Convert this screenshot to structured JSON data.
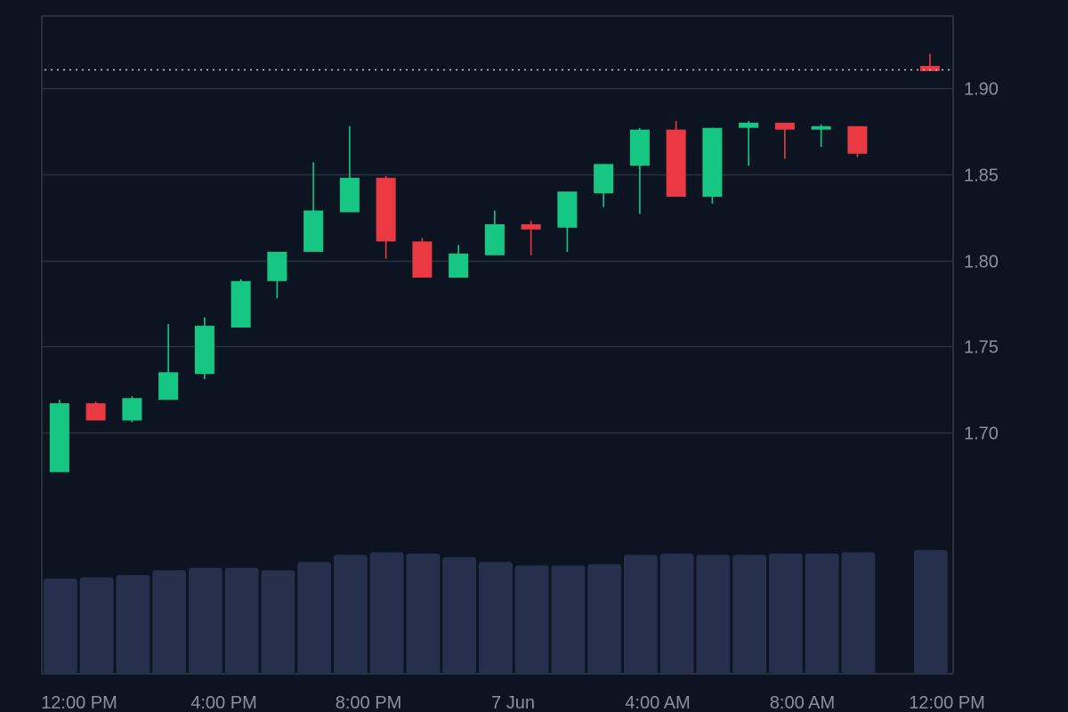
{
  "chart_data": {
    "type": "candlestick",
    "x_tick_labels": [
      "12:00 PM",
      "4:00 PM",
      "8:00 PM",
      "7 Jun",
      "4:00 AM",
      "8:00 AM",
      "12:00 PM"
    ],
    "y_tick_labels": [
      "1.70",
      "1.75",
      "1.80",
      "1.85",
      "1.90"
    ],
    "y_ticks": [
      1.7,
      1.75,
      1.8,
      1.85,
      1.9
    ],
    "ylim": [
      1.64,
      1.942
    ],
    "current_price": 1.911,
    "grid": true,
    "colors": {
      "up": "#16c784",
      "down": "#ea3943",
      "volume": "#26304d",
      "grid": "#2a3140",
      "axis_text": "#8a919e",
      "background": "#0d1421",
      "price_line": "#c9ced6"
    },
    "candles": [
      {
        "o": 1.677,
        "h": 1.719,
        "l": 1.677,
        "c": 1.717
      },
      {
        "o": 1.717,
        "h": 1.718,
        "l": 1.707,
        "c": 1.707
      },
      {
        "o": 1.707,
        "h": 1.721,
        "l": 1.706,
        "c": 1.72
      },
      {
        "o": 1.719,
        "h": 1.763,
        "l": 1.719,
        "c": 1.735
      },
      {
        "o": 1.734,
        "h": 1.767,
        "l": 1.731,
        "c": 1.762
      },
      {
        "o": 1.761,
        "h": 1.789,
        "l": 1.761,
        "c": 1.788
      },
      {
        "o": 1.788,
        "h": 1.805,
        "l": 1.778,
        "c": 1.805
      },
      {
        "o": 1.805,
        "h": 1.857,
        "l": 1.805,
        "c": 1.829
      },
      {
        "o": 1.828,
        "h": 1.878,
        "l": 1.828,
        "c": 1.848
      },
      {
        "o": 1.848,
        "h": 1.849,
        "l": 1.801,
        "c": 1.811
      },
      {
        "o": 1.811,
        "h": 1.813,
        "l": 1.79,
        "c": 1.79
      },
      {
        "o": 1.79,
        "h": 1.809,
        "l": 1.79,
        "c": 1.804
      },
      {
        "o": 1.803,
        "h": 1.829,
        "l": 1.803,
        "c": 1.821
      },
      {
        "o": 1.821,
        "h": 1.823,
        "l": 1.803,
        "c": 1.818
      },
      {
        "o": 1.819,
        "h": 1.84,
        "l": 1.805,
        "c": 1.84
      },
      {
        "o": 1.839,
        "h": 1.856,
        "l": 1.831,
        "c": 1.856
      },
      {
        "o": 1.855,
        "h": 1.877,
        "l": 1.827,
        "c": 1.876
      },
      {
        "o": 1.876,
        "h": 1.881,
        "l": 1.837,
        "c": 1.837
      },
      {
        "o": 1.837,
        "h": 1.877,
        "l": 1.833,
        "c": 1.877
      },
      {
        "o": 1.877,
        "h": 1.881,
        "l": 1.855,
        "c": 1.88
      },
      {
        "o": 1.88,
        "h": 1.88,
        "l": 1.859,
        "c": 1.876
      },
      {
        "o": 1.876,
        "h": 1.879,
        "l": 1.866,
        "c": 1.878
      },
      {
        "o": 1.878,
        "h": 1.878,
        "l": 1.86,
        "c": 1.862
      },
      null,
      {
        "o": 1.913,
        "h": 1.92,
        "l": 1.91,
        "c": 1.91
      }
    ],
    "volumes": [
      0.8,
      0.81,
      0.83,
      0.87,
      0.89,
      0.89,
      0.87,
      0.94,
      1.0,
      1.02,
      1.01,
      0.98,
      0.94,
      0.91,
      0.91,
      0.92,
      1.0,
      1.01,
      1.0,
      1.0,
      1.01,
      1.01,
      1.02,
      null,
      1.04
    ]
  }
}
